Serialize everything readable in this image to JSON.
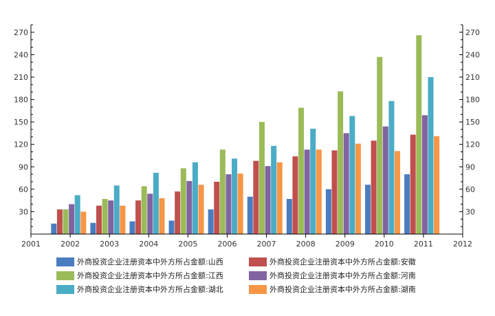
{
  "chart_data": {
    "type": "bar",
    "x_axis": {
      "min": 2001,
      "max": 2012,
      "ticks": [
        "2001",
        "2002",
        "2003",
        "2004",
        "2005",
        "2006",
        "2007",
        "2008",
        "2009",
        "2010",
        "2011",
        "2012"
      ]
    },
    "categories": [
      "2002",
      "2003",
      "2004",
      "2005",
      "2006",
      "2007",
      "2008",
      "2009",
      "2010",
      "2011"
    ],
    "y_axis": {
      "min": 0,
      "max": 280,
      "ticks": [
        "30",
        "60",
        "90",
        "120",
        "150",
        "180",
        "210",
        "240",
        "270"
      ],
      "right_axis_mirrored": true
    },
    "grid": false,
    "legend_position": "bottom",
    "series": [
      {
        "name": "外商投资企业注册资本中外方所占金额:山西",
        "color": "#4a7cc0",
        "values": [
          14,
          15,
          17,
          18,
          33,
          50,
          47,
          60,
          66,
          80
        ]
      },
      {
        "name": "外商投资企业注册资本中外方所占金额:安徽",
        "color": "#c0504d",
        "values": [
          33,
          38,
          45,
          57,
          70,
          98,
          104,
          112,
          125,
          133
        ]
      },
      {
        "name": "外商投资企业注册资本中外方所占金额:江西",
        "color": "#9bbb59",
        "values": [
          33,
          47,
          64,
          88,
          113,
          150,
          169,
          191,
          237,
          266
        ]
      },
      {
        "name": "外商投资企业注册资本中外方所占金额:河南",
        "color": "#8064a2",
        "values": [
          40,
          45,
          54,
          71,
          80,
          91,
          113,
          135,
          144,
          159
        ]
      },
      {
        "name": "外商投资企业注册资本中外方所占金额:湖北",
        "color": "#4bacc6",
        "values": [
          52,
          65,
          82,
          96,
          101,
          118,
          141,
          158,
          178,
          210
        ]
      },
      {
        "name": "外商投资企业注册资本中外方所占金额:湖南",
        "color": "#f79646",
        "values": [
          30,
          38,
          48,
          66,
          81,
          96,
          113,
          121,
          111,
          131
        ]
      }
    ]
  }
}
